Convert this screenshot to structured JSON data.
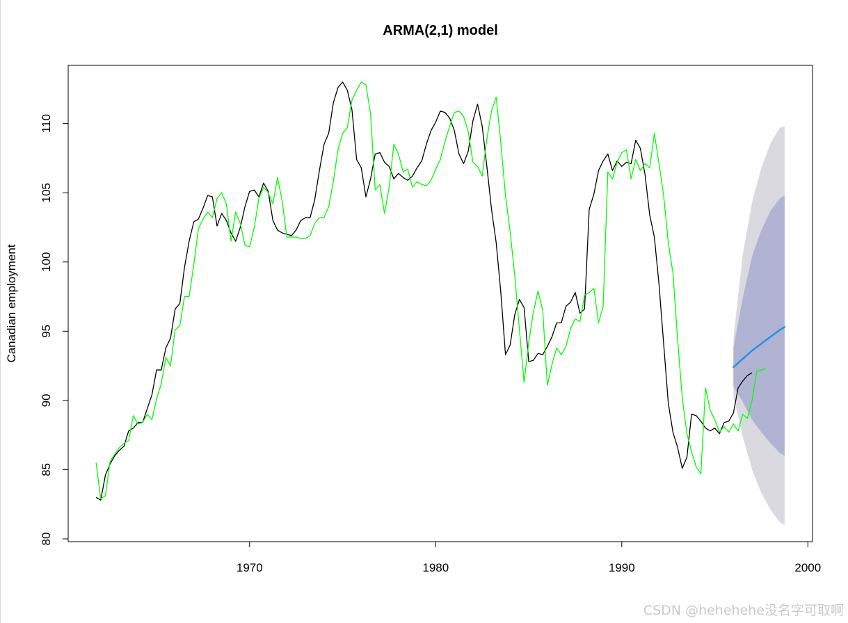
{
  "chart_data": {
    "type": "line",
    "title": "ARMA(2,1) model",
    "xlabel": "",
    "ylabel": "Canadian employment",
    "xlim": [
      1960.25,
      2000.25
    ],
    "ylim": [
      79.8,
      114.2
    ],
    "x_ticks": [
      1970,
      1980,
      1990,
      2000
    ],
    "y_ticks": [
      80,
      85,
      90,
      95,
      100,
      105,
      110
    ],
    "grid": false,
    "legend": "none",
    "series": [
      {
        "role": "observed",
        "color": "#000000",
        "start": 1961.75,
        "step": 0.25,
        "values": [
          83.0,
          82.8,
          84.6,
          85.4,
          86.0,
          86.4,
          86.7,
          87.8,
          88.0,
          88.4,
          88.4,
          89.4,
          90.4,
          92.2,
          92.2,
          93.8,
          94.5,
          96.6,
          97.0,
          99.6,
          101.5,
          102.9,
          103.1,
          103.9,
          104.8,
          104.7,
          102.6,
          103.5,
          103.0,
          102.1,
          101.5,
          102.5,
          104.0,
          105.1,
          105.2,
          104.7,
          105.7,
          105.1,
          103.0,
          102.3,
          102.1,
          102.0,
          101.9,
          102.3,
          103.0,
          103.2,
          103.2,
          104.5,
          106.6,
          108.5,
          109.3,
          111.5,
          112.6,
          113.0,
          112.4,
          111.0,
          107.4,
          106.8,
          104.7,
          106.0,
          107.8,
          107.9,
          107.2,
          106.9,
          106.0,
          106.4,
          106.1,
          105.9,
          106.2,
          106.8,
          107.3,
          108.5,
          109.5,
          110.1,
          110.9,
          110.8,
          110.4,
          109.5,
          107.8,
          107.1,
          108.0,
          110.2,
          111.4,
          109.8,
          106.9,
          103.8,
          101.4,
          97.8,
          93.3,
          94.0,
          96.2,
          97.3,
          96.7,
          92.8,
          92.9,
          93.4,
          93.3,
          93.9,
          94.6,
          95.6,
          95.6,
          96.8,
          97.1,
          97.8,
          96.3,
          96.6,
          103.8,
          104.9,
          106.6,
          107.3,
          107.8,
          106.6,
          107.3,
          106.9,
          107.2,
          107.1,
          108.8,
          108.2,
          106.3,
          103.4,
          101.8,
          98.4,
          94.1,
          89.8,
          87.7,
          86.6,
          85.1,
          85.9,
          89.0,
          88.9,
          88.5,
          88.0,
          87.8,
          88.0,
          87.6,
          88.4,
          88.5,
          89.1,
          90.9,
          91.4,
          91.8,
          92.0
        ]
      },
      {
        "role": "fitted",
        "color": "#00ff00",
        "start": 1961.75,
        "step": 0.25,
        "values": [
          85.5,
          82.9,
          83.1,
          85.6,
          86.1,
          86.6,
          86.9,
          87.1,
          88.9,
          88.3,
          88.4,
          89.0,
          88.6,
          90.1,
          91.2,
          93.1,
          92.5,
          95.1,
          95.4,
          97.5,
          97.5,
          99.8,
          102.4,
          103.1,
          103.6,
          103.2,
          104.6,
          105.0,
          104.2,
          101.5,
          103.6,
          102.8,
          101.2,
          101.1,
          102.5,
          104.6,
          105.4,
          105.0,
          104.2,
          106.1,
          104.4,
          101.8,
          101.8,
          101.8,
          101.7,
          101.7,
          101.9,
          102.8,
          103.2,
          103.2,
          104.0,
          105.8,
          108.1,
          109.3,
          109.7,
          111.7,
          112.4,
          113.0,
          112.8,
          110.7,
          105.2,
          105.6,
          103.5,
          105.4,
          108.5,
          107.8,
          106.5,
          106.7,
          105.4,
          105.8,
          105.6,
          105.5,
          105.9,
          106.7,
          107.4,
          108.7,
          109.8,
          110.8,
          110.9,
          110.5,
          109.4,
          107.2,
          106.9,
          106.2,
          108.9,
          110.9,
          111.9,
          108.6,
          104.8,
          102.2,
          99.0,
          95.1,
          91.3,
          94.2,
          96.4,
          97.9,
          96.5,
          91.1,
          92.6,
          93.8,
          93.3,
          93.9,
          95.2,
          95.9,
          95.7,
          97.6,
          97.8,
          98.1,
          95.6,
          96.8,
          106.5,
          106.0,
          107.2,
          107.9,
          108.1,
          106.0,
          107.4,
          106.6,
          107.1,
          106.8,
          109.3,
          107.1,
          104.8,
          101.4,
          99.2,
          94.4,
          90.2,
          87.6,
          86.3,
          85.2,
          84.7,
          90.9,
          89.3,
          88.6,
          87.7,
          88.1,
          87.7,
          88.3,
          87.8,
          89.0,
          88.7,
          90.0,
          92.1,
          92.2,
          92.3
        ]
      },
      {
        "role": "forecast",
        "color": "#2b8de8",
        "x": [
          1996.0,
          1996.5,
          1997.0,
          1997.5,
          1998.0,
          1998.5,
          1998.75
        ],
        "values": [
          92.4,
          93.0,
          93.6,
          94.1,
          94.6,
          95.1,
          95.3
        ],
        "lower80": [
          91.0,
          89.9,
          88.6,
          87.7,
          86.9,
          86.2,
          86.0
        ],
        "upper80": [
          93.8,
          97.4,
          100.4,
          102.3,
          103.7,
          104.6,
          104.8
        ],
        "lower95": [
          90.3,
          87.4,
          85.0,
          83.3,
          82.1,
          81.2,
          81.0
        ],
        "upper95": [
          94.5,
          100.5,
          104.3,
          106.8,
          108.6,
          109.7,
          109.8
        ]
      }
    ],
    "colors": {
      "band95": "#d9d9df",
      "band80": "#b0b4d2"
    }
  },
  "watermark": "CSDN @hehehehe没名字可取啊"
}
